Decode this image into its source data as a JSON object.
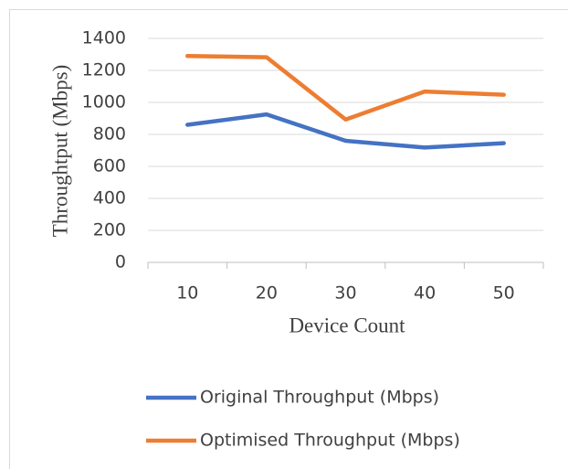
{
  "chart_data": {
    "type": "line",
    "xlabel": "Device Count",
    "ylabel": "Throughtput (Mbps)",
    "categories": [
      "10",
      "20",
      "30",
      "40",
      "50"
    ],
    "series": [
      {
        "name": "Original Throughput (Mbps)",
        "color": "#4472c4",
        "values": [
          860,
          925,
          760,
          718,
          745
        ]
      },
      {
        "name": "Optimised Throughput (Mbps)",
        "color": "#ed7d31",
        "values": [
          1290,
          1282,
          893,
          1068,
          1048
        ]
      }
    ],
    "ylim": [
      0,
      1400
    ],
    "yticks": [
      0,
      200,
      400,
      600,
      800,
      1000,
      1200,
      1400
    ],
    "grid": true,
    "legend": "bottom"
  }
}
